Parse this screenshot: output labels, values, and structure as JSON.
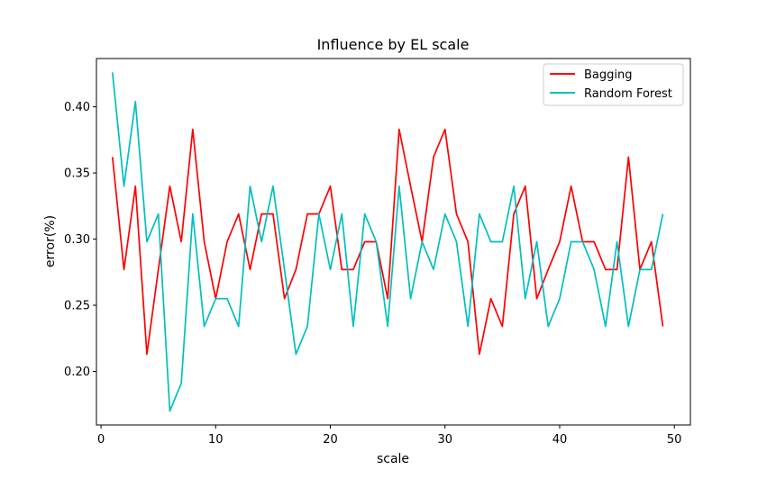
{
  "chart_data": {
    "type": "line",
    "title": "Influence by EL scale",
    "xlabel": "scale",
    "ylabel": "error(%)",
    "xlim": [
      -0.4,
      51.4
    ],
    "ylim": [
      0.1595,
      0.4365
    ],
    "xticks": [
      0,
      10,
      20,
      30,
      40,
      50
    ],
    "xtick_labels": [
      "0",
      "10",
      "20",
      "30",
      "40",
      "50"
    ],
    "yticks": [
      0.2,
      0.25,
      0.3,
      0.35,
      0.4
    ],
    "ytick_labels": [
      "0.20",
      "0.25",
      "0.30",
      "0.35",
      "0.40"
    ],
    "grid": false,
    "legend_position": "top-right",
    "x": [
      1,
      2,
      3,
      4,
      5,
      6,
      7,
      8,
      9,
      10,
      11,
      12,
      13,
      14,
      15,
      16,
      17,
      18,
      19,
      20,
      21,
      22,
      23,
      24,
      25,
      26,
      27,
      28,
      29,
      30,
      31,
      32,
      33,
      34,
      35,
      36,
      37,
      38,
      39,
      40,
      41,
      42,
      43,
      44,
      45,
      46,
      47,
      48,
      49
    ],
    "series": [
      {
        "name": "Bagging",
        "color": "#ff0000",
        "values": [
          0.362,
          0.277,
          0.34,
          0.213,
          0.277,
          0.34,
          0.298,
          0.383,
          0.298,
          0.255,
          0.298,
          0.319,
          0.277,
          0.319,
          0.319,
          0.255,
          0.277,
          0.319,
          0.319,
          0.34,
          0.277,
          0.277,
          0.298,
          0.298,
          0.255,
          0.383,
          0.34,
          0.298,
          0.362,
          0.383,
          0.319,
          0.298,
          0.213,
          0.255,
          0.234,
          0.319,
          0.34,
          0.255,
          0.277,
          0.298,
          0.34,
          0.298,
          0.298,
          0.277,
          0.277,
          0.362,
          0.277,
          0.298,
          0.234
        ]
      },
      {
        "name": "Random Forest",
        "color": "#00bfbf",
        "values": [
          0.426,
          0.34,
          0.404,
          0.298,
          0.319,
          0.17,
          0.191,
          0.319,
          0.234,
          0.255,
          0.255,
          0.234,
          0.34,
          0.298,
          0.34,
          0.277,
          0.213,
          0.234,
          0.319,
          0.277,
          0.319,
          0.234,
          0.319,
          0.298,
          0.234,
          0.34,
          0.255,
          0.298,
          0.277,
          0.319,
          0.298,
          0.234,
          0.319,
          0.298,
          0.298,
          0.34,
          0.255,
          0.298,
          0.234,
          0.255,
          0.298,
          0.298,
          0.277,
          0.234,
          0.298,
          0.234,
          0.277,
          0.277,
          0.319
        ]
      }
    ]
  }
}
